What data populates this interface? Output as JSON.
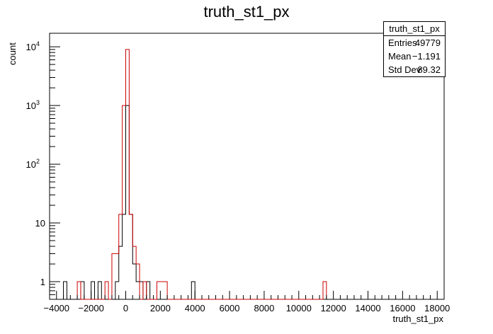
{
  "title": "truth_st1_px",
  "chart_data": {
    "type": "histogram",
    "title": "truth_st1_px",
    "xlabel": "truth_st1_px",
    "ylabel": "count",
    "xlim": [
      -4400,
      18400
    ],
    "ylim": [
      0.5,
      17000
    ],
    "yscale": "log",
    "bin_width": 200,
    "xticks": [
      -4000,
      -2000,
      0,
      2000,
      4000,
      6000,
      8000,
      10000,
      12000,
      14000,
      16000,
      18000
    ],
    "xtick_labels": [
      "−4000",
      "−2000",
      "0",
      "2000",
      "4000",
      "6000",
      "8000",
      "10000",
      "12000",
      "14000",
      "16000",
      "18000"
    ],
    "yticks": [
      {
        "value": 1,
        "base": "1",
        "exp": ""
      },
      {
        "value": 10,
        "base": "10",
        "exp": ""
      },
      {
        "value": 100,
        "base": "10",
        "exp": "2"
      },
      {
        "value": 1000,
        "base": "10",
        "exp": "3"
      },
      {
        "value": 10000,
        "base": "10",
        "exp": "4"
      }
    ],
    "series": [
      {
        "color": "#000000",
        "bins": [
          [
            -3600,
            1
          ],
          [
            -2600,
            1
          ],
          [
            -2000,
            1
          ],
          [
            -1600,
            1
          ],
          [
            -600,
            1
          ],
          [
            -400,
            4
          ],
          [
            -200,
            14
          ],
          [
            0,
            1000
          ],
          [
            200,
            14
          ],
          [
            400,
            2
          ],
          [
            600,
            1
          ],
          [
            800,
            1
          ],
          [
            1200,
            1
          ],
          [
            3800,
            1
          ]
        ]
      },
      {
        "color": "#cc0000",
        "bins": [
          [
            -2800,
            1
          ],
          [
            -1200,
            1
          ],
          [
            -800,
            3
          ],
          [
            -600,
            3
          ],
          [
            -400,
            14
          ],
          [
            -200,
            1000
          ],
          [
            0,
            9000
          ],
          [
            200,
            14
          ],
          [
            400,
            4
          ],
          [
            600,
            2
          ],
          [
            1000,
            1
          ],
          [
            1800,
            1
          ],
          [
            2000,
            1
          ],
          [
            2200,
            1
          ],
          [
            11400,
            1
          ]
        ]
      }
    ],
    "legend": "top-right",
    "stats": {
      "name": "truth_st1_px",
      "rows": [
        {
          "label": "Entries",
          "value": "49779"
        },
        {
          "label": "Mean",
          "value": "−1.191"
        },
        {
          "label": "Std Dev",
          "value": "89.32"
        }
      ]
    }
  }
}
